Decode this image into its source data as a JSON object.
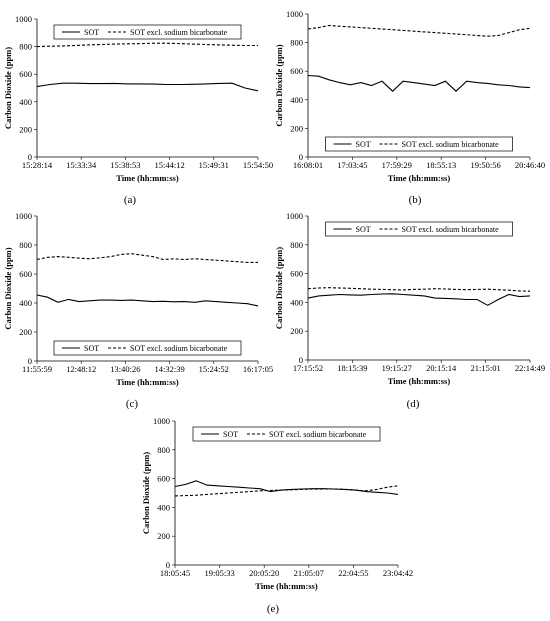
{
  "chart_data": [
    {
      "type": "line",
      "panel": "(a)",
      "xlabel": "Time (hh:mm:ss)",
      "ylabel": "Carbon Dioxide (ppm)",
      "ylim": [
        0,
        1000
      ],
      "yticks": [
        0,
        200,
        400,
        600,
        800,
        1000
      ],
      "xtick_labels": [
        "15:28:14",
        "15:33:34",
        "15:38:53",
        "15:44:12",
        "15:49:31",
        "15:54:50"
      ],
      "legend": "top",
      "series": [
        {
          "name": "SOT",
          "style": "solid",
          "values": [
            510,
            525,
            535,
            535,
            532,
            532,
            533,
            530,
            530,
            528,
            525,
            525,
            527,
            530,
            533,
            535,
            500,
            480
          ]
        },
        {
          "name": "SOT excl. sodium bicarbonate",
          "style": "dashed",
          "values": [
            800,
            803,
            805,
            808,
            812,
            815,
            818,
            820,
            822,
            825,
            825,
            822,
            818,
            815,
            812,
            810,
            808,
            808
          ]
        }
      ]
    },
    {
      "type": "line",
      "panel": "(b)",
      "xlabel": "Time (hh:mm:ss)",
      "ylabel": "Carbon Dioxide (ppm)",
      "ylim": [
        0,
        1000
      ],
      "yticks": [
        0,
        200,
        400,
        600,
        800,
        1000
      ],
      "xtick_labels": [
        "16:08:01",
        "17:03:45",
        "17:59:29",
        "18:55:13",
        "19:50:56",
        "20:46:40"
      ],
      "legend": "bottom",
      "series": [
        {
          "name": "SOT",
          "style": "solid",
          "values": [
            570,
            565,
            540,
            520,
            505,
            520,
            500,
            530,
            460,
            530,
            520,
            510,
            500,
            530,
            460,
            530,
            520,
            515,
            505,
            500,
            490,
            485
          ]
        },
        {
          "name": "SOT excl. sodium bicarbonate",
          "style": "dashed",
          "values": [
            895,
            905,
            920,
            915,
            910,
            905,
            900,
            895,
            890,
            885,
            880,
            875,
            870,
            865,
            860,
            855,
            850,
            845,
            850,
            870,
            890,
            900
          ]
        }
      ]
    },
    {
      "type": "line",
      "panel": "(c)",
      "xlabel": "Time (hh:mm:ss)",
      "ylabel": "Carbon Dioxide (ppm)",
      "ylim": [
        0,
        1000
      ],
      "yticks": [
        0,
        200,
        400,
        600,
        800,
        1000
      ],
      "xtick_labels": [
        "11:55:59",
        "12:48:12",
        "13:40:26",
        "14:32:39",
        "15:24:52",
        "16:17:05"
      ],
      "legend": "bottom",
      "series": [
        {
          "name": "SOT",
          "style": "solid",
          "values": [
            455,
            440,
            405,
            425,
            410,
            415,
            420,
            420,
            418,
            420,
            415,
            410,
            412,
            408,
            410,
            405,
            415,
            410,
            405,
            400,
            395,
            380
          ]
        },
        {
          "name": "SOT excl. sodium bicarbonate",
          "style": "dashed",
          "values": [
            700,
            715,
            720,
            715,
            710,
            705,
            712,
            720,
            735,
            740,
            730,
            720,
            700,
            705,
            700,
            705,
            700,
            695,
            690,
            685,
            680,
            680
          ]
        }
      ]
    },
    {
      "type": "line",
      "panel": "(d)",
      "xlabel": "Time (hh:mm:ss)",
      "ylabel": "Carbon Dioxide (ppm)",
      "ylim": [
        0,
        1000
      ],
      "yticks": [
        0,
        200,
        400,
        600,
        800,
        1000
      ],
      "xtick_labels": [
        "17:15:52",
        "18:15:39",
        "19:15:27",
        "20:15:14",
        "21:15:01",
        "22:14:49"
      ],
      "legend": "top",
      "series": [
        {
          "name": "SOT",
          "style": "solid",
          "values": [
            430,
            445,
            450,
            455,
            452,
            450,
            455,
            458,
            460,
            455,
            450,
            445,
            430,
            428,
            425,
            420,
            420,
            380,
            420,
            455,
            440,
            445
          ]
        },
        {
          "name": "SOT excl. sodium bicarbonate",
          "style": "dashed",
          "values": [
            495,
            500,
            502,
            500,
            498,
            495,
            492,
            490,
            488,
            487,
            490,
            492,
            495,
            493,
            490,
            488,
            490,
            492,
            488,
            485,
            480,
            478
          ]
        }
      ]
    },
    {
      "type": "line",
      "panel": "(e)",
      "xlabel": "Time (hh:mm:ss)",
      "ylabel": "Carbon Dioxide (ppm)",
      "ylim": [
        0,
        1000
      ],
      "yticks": [
        0,
        200,
        400,
        600,
        800,
        1000
      ],
      "xtick_labels": [
        "18:05:45",
        "19:05:33",
        "20:05:20",
        "21:05:07",
        "22:04:55",
        "23:04:42"
      ],
      "legend": "top",
      "series": [
        {
          "name": "SOT",
          "style": "solid",
          "values": [
            545,
            560,
            585,
            555,
            550,
            545,
            540,
            535,
            530,
            510,
            520,
            525,
            528,
            530,
            530,
            528,
            525,
            520,
            510,
            505,
            500,
            490
          ]
        },
        {
          "name": "SOT excl. sodium bicarbonate",
          "style": "dashed",
          "values": [
            480,
            482,
            485,
            490,
            495,
            500,
            505,
            510,
            515,
            518,
            520,
            522,
            525,
            527,
            528,
            528,
            525,
            520,
            515,
            525,
            540,
            550
          ]
        }
      ]
    }
  ]
}
